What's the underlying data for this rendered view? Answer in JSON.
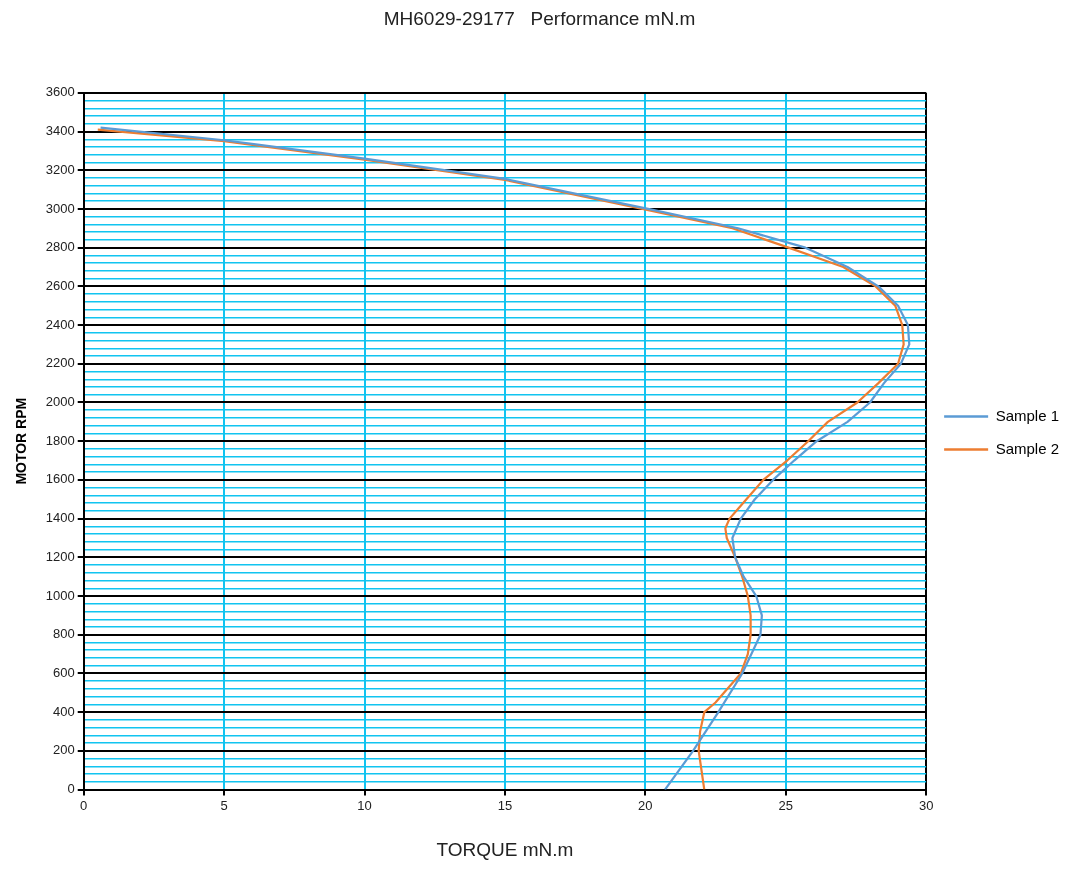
{
  "chart_data": {
    "type": "line",
    "title": "MH6029-29177   Performance mN.m",
    "xlabel": "TORQUE mN.m",
    "ylabel": "MOTOR RPM",
    "xlim": [
      0,
      30
    ],
    "xticks": [
      0,
      5,
      10,
      15,
      20,
      25,
      30
    ],
    "ylim": [
      0,
      3600
    ],
    "yticks": [
      0,
      {
        "value": 40,
        "label": null
      },
      {
        "value": 80,
        "label": null
      },
      {
        "value": 120,
        "label": null
      },
      {
        "value": 160,
        "label": null
      },
      200,
      {
        "value": 240,
        "label": null
      },
      {
        "value": 280,
        "label": null
      },
      {
        "value": 320,
        "label": null
      },
      {
        "value": 360,
        "label": null
      },
      400,
      {
        "value": 440,
        "label": null
      },
      {
        "value": 480,
        "label": null
      },
      {
        "value": 520,
        "label": null
      },
      {
        "value": 560,
        "label": null
      },
      600,
      {
        "value": 640,
        "label": null
      },
      {
        "value": 680,
        "label": null
      },
      {
        "value": 720,
        "label": null
      },
      {
        "value": 760,
        "label": null
      },
      800,
      {
        "value": 840,
        "label": null
      },
      {
        "value": 880,
        "label": null
      },
      {
        "value": 920,
        "label": null
      },
      {
        "value": 960,
        "label": null
      },
      1000,
      {
        "value": 1040,
        "label": null
      },
      {
        "value": 1080,
        "label": null
      },
      {
        "value": 1120,
        "label": null
      },
      {
        "value": 1160,
        "label": null
      },
      1200,
      {
        "value": 1240,
        "label": null
      },
      {
        "value": 1280,
        "label": null
      },
      {
        "value": 1320,
        "label": null
      },
      {
        "value": 1360,
        "label": null
      },
      1400,
      {
        "value": 1440,
        "label": null
      },
      {
        "value": 1480,
        "label": null
      },
      {
        "value": 1520,
        "label": null
      },
      {
        "value": 1560,
        "label": null
      },
      1600,
      {
        "value": 1640,
        "label": null
      },
      {
        "value": 1680,
        "label": null
      },
      {
        "value": 1720,
        "label": null
      },
      {
        "value": 1760,
        "label": null
      },
      1800,
      {
        "value": 1840,
        "label": null
      },
      {
        "value": 1880,
        "label": null
      },
      {
        "value": 1920,
        "label": null
      },
      {
        "value": 1960,
        "label": null
      },
      2000,
      {
        "value": 2040,
        "label": null
      },
      {
        "value": 2080,
        "label": null
      },
      {
        "value": 2120,
        "label": null
      },
      {
        "value": 2160,
        "label": null
      },
      2200,
      {
        "value": 2240,
        "label": null
      },
      {
        "value": 2280,
        "label": null
      },
      {
        "value": 2320,
        "label": null
      },
      {
        "value": 2360,
        "label": null
      },
      2400,
      {
        "value": 2440,
        "label": null
      },
      {
        "value": 2480,
        "label": null
      },
      {
        "value": 2520,
        "label": null
      },
      {
        "value": 2560,
        "label": null
      },
      2600,
      {
        "value": 2640,
        "label": null
      },
      {
        "value": 2680,
        "label": null
      },
      {
        "value": 2720,
        "label": null
      },
      {
        "value": 2760,
        "label": null
      },
      2800,
      {
        "value": 2840,
        "label": null
      },
      {
        "value": 2880,
        "label": null
      },
      {
        "value": 2920,
        "label": null
      },
      {
        "value": 2960,
        "label": null
      },
      3000,
      {
        "value": 3040,
        "label": null
      },
      {
        "value": 3080,
        "label": null
      },
      {
        "value": 3120,
        "label": null
      },
      {
        "value": 3160,
        "label": null
      },
      3200,
      {
        "value": 3240,
        "label": null
      },
      {
        "value": 3280,
        "label": null
      },
      {
        "value": 3320,
        "label": null
      },
      {
        "value": 3360,
        "label": null
      },
      3400,
      {
        "value": 3440,
        "label": null
      },
      {
        "value": 3480,
        "label": null
      },
      {
        "value": 3520,
        "label": null
      },
      {
        "value": 3560,
        "label": null
      },
      3600
    ],
    "grid": true,
    "legend": "right",
    "marker": "none",
    "line_style": "solid",
    "series": [
      {
        "name": "Sample 1",
        "color": "#5b9bd5",
        "x": [
          0.6,
          5,
          10,
          15,
          20.1,
          23.3,
          25.7,
          27.2,
          28.3,
          29.0,
          29.35,
          29.4,
          29.1,
          28.5,
          28.0,
          27.2,
          26.1,
          25.3,
          24.55,
          23.9,
          23.4,
          23.1,
          23.2,
          23.5,
          23.95,
          24.15,
          24.1,
          23.45,
          22.6,
          21.7,
          20.7
        ],
        "values": [
          3420,
          3355,
          3260,
          3155,
          3000,
          2900,
          2800,
          2700,
          2600,
          2500,
          2400,
          2300,
          2200,
          2100,
          2000,
          1900,
          1800,
          1700,
          1600,
          1500,
          1400,
          1300,
          1200,
          1100,
          1000,
          900,
          800,
          600,
          400,
          200,
          0
        ]
      },
      {
        "name": "Sample 2",
        "color": "#ed7d31",
        "x": [
          0.5,
          5,
          10,
          15,
          19.9,
          23.1,
          25.1,
          27.05,
          28.2,
          28.9,
          29.15,
          29.2,
          29.0,
          28.3,
          27.55,
          26.5,
          25.8,
          25.05,
          24.2,
          23.6,
          23.0,
          22.85,
          22.9,
          23.2,
          23.45,
          23.65,
          23.75,
          23.75,
          23.65,
          23.4,
          22.8,
          22.5,
          22.1,
          21.95,
          21.9,
          22.0,
          22.1
        ],
        "values": [
          3410,
          3350,
          3255,
          3150,
          3000,
          2900,
          2800,
          2700,
          2600,
          2500,
          2400,
          2300,
          2200,
          2100,
          2000,
          1900,
          1800,
          1700,
          1600,
          1500,
          1400,
          1350,
          1300,
          1200,
          1100,
          1000,
          900,
          800,
          700,
          600,
          500,
          450,
          400,
          300,
          200,
          100,
          0
        ]
      }
    ]
  }
}
